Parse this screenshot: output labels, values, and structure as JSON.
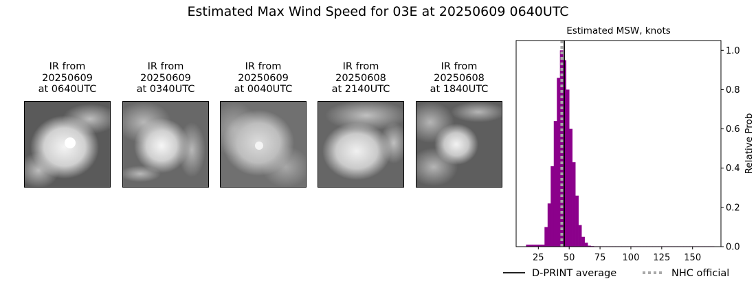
{
  "figure": {
    "title": "Estimated Max Wind Speed for 03E at 20250609 0640UTC"
  },
  "panels": [
    {
      "lines": [
        "IR from",
        "20250609",
        "at 0640UTC"
      ]
    },
    {
      "lines": [
        "IR from",
        "20250609",
        "at 0340UTC"
      ]
    },
    {
      "lines": [
        "IR from",
        "20250609",
        "at 0040UTC"
      ]
    },
    {
      "lines": [
        "IR from",
        "20250608",
        "at 2140UTC"
      ]
    },
    {
      "lines": [
        "IR from",
        "20250608",
        "at 1840UTC"
      ]
    }
  ],
  "chart_data": {
    "type": "bar",
    "title": "Estimated MSW, knots",
    "xlabel": "",
    "ylabel": "Relative Prob",
    "xlim": [
      7,
      173
    ],
    "ylim": [
      0,
      1.05
    ],
    "xticks": [
      25,
      50,
      75,
      100,
      125,
      150
    ],
    "yticks": [
      0.0,
      0.2,
      0.4,
      0.6,
      0.8,
      1.0
    ],
    "yaxis_side": "right",
    "bin_width": 2.5,
    "bar_color": "#8b008b",
    "bins": [
      {
        "x": 15,
        "value": 0.01
      },
      {
        "x": 17.5,
        "value": 0.01
      },
      {
        "x": 20,
        "value": 0.01
      },
      {
        "x": 22.5,
        "value": 0.01
      },
      {
        "x": 25,
        "value": 0.01
      },
      {
        "x": 27.5,
        "value": 0.01
      },
      {
        "x": 30,
        "value": 0.1
      },
      {
        "x": 32.5,
        "value": 0.22
      },
      {
        "x": 35,
        "value": 0.41
      },
      {
        "x": 37.5,
        "value": 0.64
      },
      {
        "x": 40,
        "value": 0.86
      },
      {
        "x": 42.5,
        "value": 1.0
      },
      {
        "x": 45,
        "value": 0.95
      },
      {
        "x": 47.5,
        "value": 0.8
      },
      {
        "x": 50,
        "value": 0.6
      },
      {
        "x": 52.5,
        "value": 0.43
      },
      {
        "x": 55,
        "value": 0.26
      },
      {
        "x": 57.5,
        "value": 0.11
      },
      {
        "x": 60,
        "value": 0.05
      },
      {
        "x": 62.5,
        "value": 0.02
      },
      {
        "x": 65,
        "value": 0.005
      },
      {
        "x": 67.5,
        "value": 0.003
      },
      {
        "x": 70,
        "value": 0.002
      },
      {
        "x": 72.5,
        "value": 0.002
      },
      {
        "x": 75,
        "value": 0.002
      },
      {
        "x": 77.5,
        "value": 0.002
      },
      {
        "x": 80,
        "value": 0.002
      },
      {
        "x": 82.5,
        "value": 0.002
      },
      {
        "x": 85,
        "value": 0.002
      },
      {
        "x": 87.5,
        "value": 0.002
      },
      {
        "x": 90,
        "value": 0.002
      },
      {
        "x": 92.5,
        "value": 0.002
      },
      {
        "x": 95,
        "value": 0.002
      },
      {
        "x": 97.5,
        "value": 0.002
      },
      {
        "x": 100,
        "value": 0.002
      },
      {
        "x": 102.5,
        "value": 0.002
      },
      {
        "x": 105,
        "value": 0.002
      },
      {
        "x": 107.5,
        "value": 0.002
      },
      {
        "x": 110,
        "value": 0.002
      },
      {
        "x": 112.5,
        "value": 0.002
      },
      {
        "x": 115,
        "value": 0.002
      },
      {
        "x": 117.5,
        "value": 0.002
      },
      {
        "x": 120,
        "value": 0.002
      },
      {
        "x": 122.5,
        "value": 0.002
      },
      {
        "x": 125,
        "value": 0.002
      },
      {
        "x": 127.5,
        "value": 0.002
      },
      {
        "x": 130,
        "value": 0.002
      },
      {
        "x": 132.5,
        "value": 0.002
      },
      {
        "x": 135,
        "value": 0.002
      },
      {
        "x": 137.5,
        "value": 0.002
      },
      {
        "x": 140,
        "value": 0.002
      },
      {
        "x": 142.5,
        "value": 0.002
      },
      {
        "x": 145,
        "value": 0.002
      },
      {
        "x": 147.5,
        "value": 0.002
      },
      {
        "x": 150,
        "value": 0.002
      },
      {
        "x": 152.5,
        "value": 0.002
      },
      {
        "x": 155,
        "value": 0.002
      },
      {
        "x": 157.5,
        "value": 0.002
      },
      {
        "x": 160,
        "value": 0.002
      },
      {
        "x": 162.5,
        "value": 0.002
      },
      {
        "x": 165,
        "value": 0.002
      }
    ],
    "reference_lines": [
      {
        "name": "D-PRINT average",
        "x": 46,
        "color": "#000000",
        "style": "solid"
      },
      {
        "name": "NHC official",
        "x": 44,
        "color": "#a9a9a9",
        "style": "dotted"
      }
    ],
    "legend_position": "bottom"
  }
}
